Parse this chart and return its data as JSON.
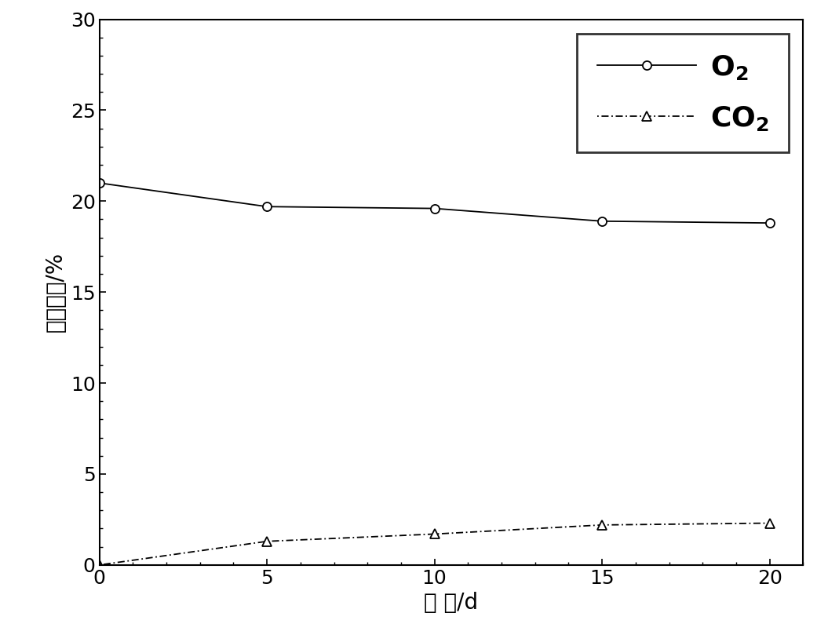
{
  "o2_x": [
    0,
    5,
    10,
    15,
    20
  ],
  "o2_y": [
    21.0,
    19.7,
    19.6,
    18.9,
    18.8
  ],
  "co2_x": [
    0,
    5,
    10,
    15,
    20
  ],
  "co2_y": [
    0.0,
    1.3,
    1.7,
    2.2,
    2.3
  ],
  "xlabel": "时 间/d",
  "ylabel": "气体体积/%",
  "xlim": [
    0,
    21
  ],
  "ylim": [
    0,
    30
  ],
  "xticks": [
    0,
    5,
    10,
    15,
    20
  ],
  "yticks": [
    0,
    5,
    10,
    15,
    20,
    25,
    30
  ],
  "legend_o2": "$\\mathbf{O_2}$",
  "legend_co2": "$\\mathbf{CO_2}$",
  "background_color": "#ffffff",
  "line_color": "#000000",
  "label_fontsize": 20,
  "tick_fontsize": 18,
  "legend_fontsize": 26
}
